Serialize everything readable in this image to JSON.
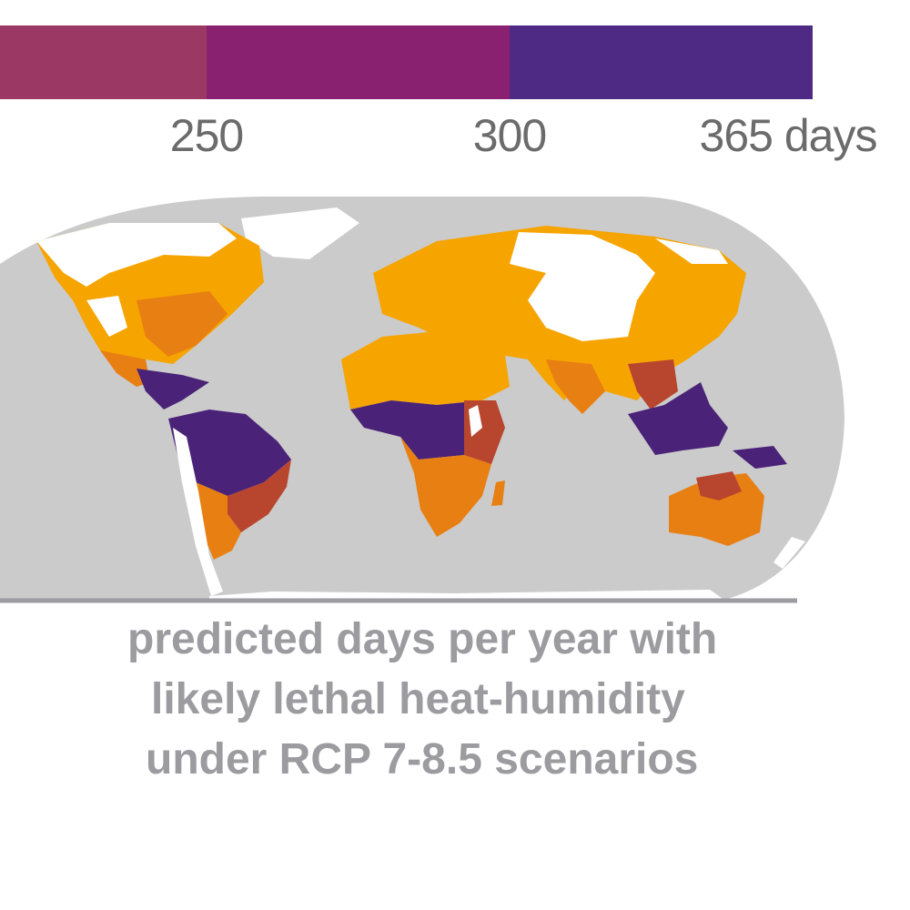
{
  "legend": {
    "unit": "days",
    "ticks": [
      {
        "value": 250,
        "label": "250"
      },
      {
        "value": 300,
        "label": "300"
      },
      {
        "value": 365,
        "label": "365 days"
      }
    ],
    "bins": [
      {
        "from": 200,
        "to": 250,
        "color": "#9c3864"
      },
      {
        "from": 250,
        "to": 300,
        "color": "#8a2070"
      },
      {
        "from": 300,
        "to": 365,
        "color": "#4e2a84"
      }
    ]
  },
  "map": {
    "colors": {
      "ocean": "#cbcbcb",
      "no_data": "#ffffff",
      "low": "#f6a400",
      "mid": "#e87f12",
      "high": "#b8452e",
      "very_high": "#4a2378"
    }
  },
  "caption": {
    "line1": "predicted days per year with",
    "line2": "likely lethal heat-humidity",
    "line3": "under RCP 7-8.5 scenarios"
  }
}
